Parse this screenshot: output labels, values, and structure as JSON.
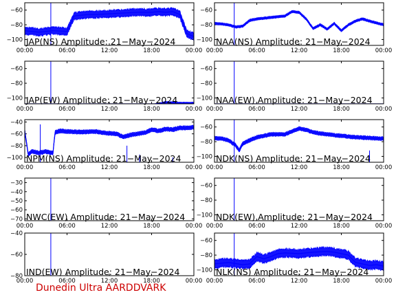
{
  "footer": {
    "text": "Dunedin Ultra AARDDVARK",
    "color": "#cc0000"
  },
  "trace_color": "#0000ff",
  "chart_data": [
    {
      "type": "line",
      "title": "JAP(NS) Amplitude: 21−May−2024",
      "xlabel": "",
      "ylabel": "",
      "xticks": [
        "00:00",
        "06:00",
        "12:00",
        "18:00",
        "00:00"
      ],
      "yticks": [
        "−100",
        "−80",
        "−60"
      ],
      "ylim": [
        -108,
        -50
      ],
      "series": [
        {
          "hours": [
            0,
            2,
            4,
            6,
            7,
            8,
            9,
            10,
            12,
            14,
            16,
            18,
            19,
            20,
            21,
            22,
            23,
            24
          ],
          "values": [
            -88,
            -90,
            -88,
            -89,
            -68,
            -67,
            -66,
            -66,
            -65,
            -64,
            -63,
            -63,
            -62,
            -63,
            -62,
            -66,
            -92,
            -96
          ],
          "noise": 6
        }
      ],
      "spikes": [
        {
          "hour": 3.7,
          "to": -50
        }
      ]
    },
    {
      "type": "line",
      "title": "NAA(NS) Amplitude: 21−May−2024",
      "xlabel": "",
      "ylabel": "",
      "xticks": [
        "00:00",
        "06:00",
        "12:00",
        "18:00",
        "00:00"
      ],
      "yticks": [
        "−100",
        "−80",
        "−60"
      ],
      "ylim": [
        -108,
        -50
      ],
      "series": [
        {
          "hours": [
            0,
            2,
            3,
            4,
            5,
            6,
            8,
            10,
            11,
            12,
            13,
            14,
            15,
            16,
            17,
            18,
            19,
            20,
            21,
            22,
            24
          ],
          "values": [
            -78,
            -80,
            -83,
            -82,
            -74,
            -72,
            -70,
            -68,
            -62,
            -63,
            -72,
            -85,
            -80,
            -86,
            -78,
            -88,
            -80,
            -75,
            -72,
            -75,
            -80
          ],
          "noise": 2
        }
      ],
      "spikes": [
        {
          "hour": 2.8,
          "to": -50
        },
        {
          "hour": 4.0,
          "to": -108
        }
      ]
    },
    {
      "type": "line",
      "title": "JAP(EW) Amplitude: 21−May−2024",
      "xlabel": "",
      "ylabel": "",
      "xticks": [
        "00:00",
        "06:00",
        "12:00",
        "18:00",
        "00:00"
      ],
      "yticks": [
        "−100",
        "−80",
        "−60"
      ],
      "ylim": [
        -108,
        -50
      ],
      "series": [
        {
          "hours": [
            0,
            6,
            12,
            18,
            20,
            22,
            24
          ],
          "values": [
            -112,
            -112,
            -112,
            -110,
            -106,
            -107,
            -107
          ],
          "noise": 1.5
        }
      ],
      "spikes": [
        {
          "hour": 3.7,
          "to": -50
        }
      ]
    },
    {
      "type": "line",
      "title": "NAA(EW) Amplitude: 21−May−2024",
      "xlabel": "",
      "ylabel": "",
      "xticks": [
        "00:00",
        "06:00",
        "12:00",
        "18:00",
        "00:00"
      ],
      "yticks": [
        "−100",
        "−80",
        "−60"
      ],
      "ylim": [
        -108,
        -50
      ],
      "series": [
        {
          "hours": [
            0,
            6,
            10,
            12,
            24
          ],
          "values": [
            -112,
            -112,
            -112,
            -110,
            -112
          ],
          "noise": 0.5
        }
      ],
      "spikes": [
        {
          "hour": 2.8,
          "to": -50
        }
      ]
    },
    {
      "type": "line",
      "title": "NPM(NS) Amplitude: 21−May−2024",
      "xlabel": "",
      "ylabel": "",
      "xticks": [
        "00:00",
        "06:00",
        "12:00",
        "18:00",
        "00:00"
      ],
      "yticks": [
        "−100",
        "−80",
        "−60",
        "−40"
      ],
      "ylim": [
        -108,
        -36
      ],
      "series": [
        {
          "hours": [
            0,
            0.5,
            1,
            2,
            3,
            4,
            4.3,
            5,
            6,
            8,
            10,
            11,
            12,
            13,
            14,
            15,
            16,
            17,
            18,
            19,
            20,
            21,
            22,
            23,
            24
          ],
          "values": [
            -55,
            -95,
            -90,
            -92,
            -90,
            -93,
            -58,
            -55,
            -56,
            -57,
            -56,
            -58,
            -59,
            -60,
            -65,
            -62,
            -60,
            -58,
            -53,
            -55,
            -52,
            -53,
            -50,
            -50,
            -49
          ],
          "noise": 4
        }
      ],
      "spikes": [
        {
          "hour": 2.2,
          "to": -44
        },
        {
          "hour": 14.5,
          "to": -80
        },
        {
          "hour": 16.3,
          "to": -95
        },
        {
          "hour": 21.0,
          "to": -100
        }
      ]
    },
    {
      "type": "line",
      "title": "NDK(NS) Amplitude: 21−May−2024",
      "xlabel": "",
      "ylabel": "",
      "xticks": [
        "00:00",
        "06:00",
        "12:00",
        "18:00",
        "00:00"
      ],
      "yticks": [
        "−100",
        "−80",
        "−60"
      ],
      "ylim": [
        -108,
        -50
      ],
      "series": [
        {
          "hours": [
            0,
            1,
            2,
            3,
            3.5,
            4,
            5,
            6,
            8,
            10,
            12,
            13,
            14,
            15,
            16,
            18,
            20,
            22,
            24
          ],
          "values": [
            -75,
            -76,
            -78,
            -85,
            -92,
            -83,
            -78,
            -74,
            -70,
            -70,
            -62,
            -64,
            -67,
            -69,
            -70,
            -72,
            -74,
            -75,
            -76
          ],
          "noise": 3
        }
      ],
      "spikes": [
        {
          "hour": 2.8,
          "to": -50
        },
        {
          "hour": 22.0,
          "to": -92
        }
      ]
    },
    {
      "type": "line",
      "title": "NWC(EW) Amplitude: 21−May−2024",
      "xlabel": "",
      "ylabel": "",
      "xticks": [
        "00:00",
        "06:00",
        "12:00",
        "18:00",
        "00:00"
      ],
      "yticks": [
        "−70",
        "−60",
        "−50",
        "−40",
        "−30"
      ],
      "ylim": [
        -72,
        -25
      ],
      "series": [],
      "spikes": [
        {
          "hour": 3.7,
          "to": -25
        }
      ]
    },
    {
      "type": "line",
      "title": "NDK(EW) Amplitude: 21−May−2024",
      "xlabel": "",
      "ylabel": "",
      "xticks": [
        "00:00",
        "06:00",
        "12:00",
        "18:00",
        "00:00"
      ],
      "yticks": [
        "−100",
        "−80",
        "−60"
      ],
      "ylim": [
        -108,
        -50
      ],
      "series": [],
      "spikes": [
        {
          "hour": 2.8,
          "to": -50
        }
      ]
    },
    {
      "type": "line",
      "title": "IND(EW) Amplitude: 21−May−2024",
      "xlabel": "",
      "ylabel": "",
      "xticks": [
        "00:00",
        "06:00",
        "12:00",
        "18:00",
        "00:00"
      ],
      "yticks": [
        "−80",
        "−60",
        "−40"
      ],
      "ylim": [
        -80,
        -40
      ],
      "series": [],
      "spikes": [
        {
          "hour": 3.7,
          "to": -40
        }
      ]
    },
    {
      "type": "line",
      "title": "NLK(NS) Amplitude: 21−May−2024",
      "xlabel": "",
      "ylabel": "",
      "xticks": [
        "00:00",
        "06:00",
        "12:00",
        "18:00",
        "00:00"
      ],
      "yticks": [
        "−100",
        "−80",
        "−60"
      ],
      "ylim": [
        -108,
        -50
      ],
      "series": [
        {
          "hours": [
            0,
            2,
            4,
            5,
            6,
            7,
            8,
            9,
            10,
            12,
            14,
            16,
            17,
            18,
            19,
            20,
            21,
            22,
            23,
            24
          ],
          "values": [
            -92,
            -90,
            -93,
            -92,
            -82,
            -85,
            -82,
            -78,
            -77,
            -78,
            -76,
            -75,
            -76,
            -78,
            -80,
            -90,
            -92,
            -94,
            -93,
            -95
          ],
          "noise": 7
        }
      ],
      "spikes": [
        {
          "hour": 2.8,
          "to": -50
        }
      ]
    }
  ]
}
